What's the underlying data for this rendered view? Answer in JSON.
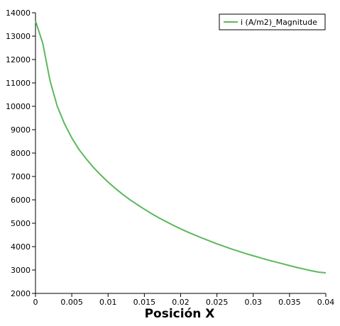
{
  "chart_data": {
    "type": "line",
    "title": "",
    "xlabel": "Posición X",
    "ylabel": "",
    "xlim": [
      0,
      0.04
    ],
    "ylim": [
      2000,
      14000
    ],
    "grid": false,
    "legend_position": "top-right",
    "x_ticks": [
      "0",
      "0.005",
      "0.01",
      "0.015",
      "0.02",
      "0.025",
      "0.03",
      "0.035",
      "0.04"
    ],
    "y_ticks": [
      "2000",
      "3000",
      "4000",
      "5000",
      "6000",
      "7000",
      "8000",
      "9000",
      "10000",
      "11000",
      "12000",
      "13000",
      "14000"
    ],
    "series": [
      {
        "name": "i (A/m2)_Magnitude",
        "color": "#5cb85c",
        "x": [
          0,
          0.001,
          0.002,
          0.003,
          0.004,
          0.005,
          0.006,
          0.007,
          0.008,
          0.009,
          0.01,
          0.011,
          0.012,
          0.013,
          0.014,
          0.015,
          0.016,
          0.017,
          0.018,
          0.019,
          0.02,
          0.021,
          0.022,
          0.023,
          0.024,
          0.025,
          0.026,
          0.027,
          0.028,
          0.029,
          0.03,
          0.031,
          0.032,
          0.033,
          0.034,
          0.035,
          0.036,
          0.037,
          0.038,
          0.039,
          0.04
        ],
        "y": [
          13650,
          12700,
          11100,
          10000,
          9250,
          8650,
          8150,
          7750,
          7380,
          7060,
          6760,
          6490,
          6240,
          6010,
          5800,
          5600,
          5410,
          5230,
          5070,
          4910,
          4760,
          4620,
          4490,
          4360,
          4240,
          4120,
          4010,
          3900,
          3800,
          3700,
          3610,
          3520,
          3430,
          3350,
          3270,
          3190,
          3110,
          3040,
          2970,
          2910,
          2880
        ]
      }
    ]
  }
}
